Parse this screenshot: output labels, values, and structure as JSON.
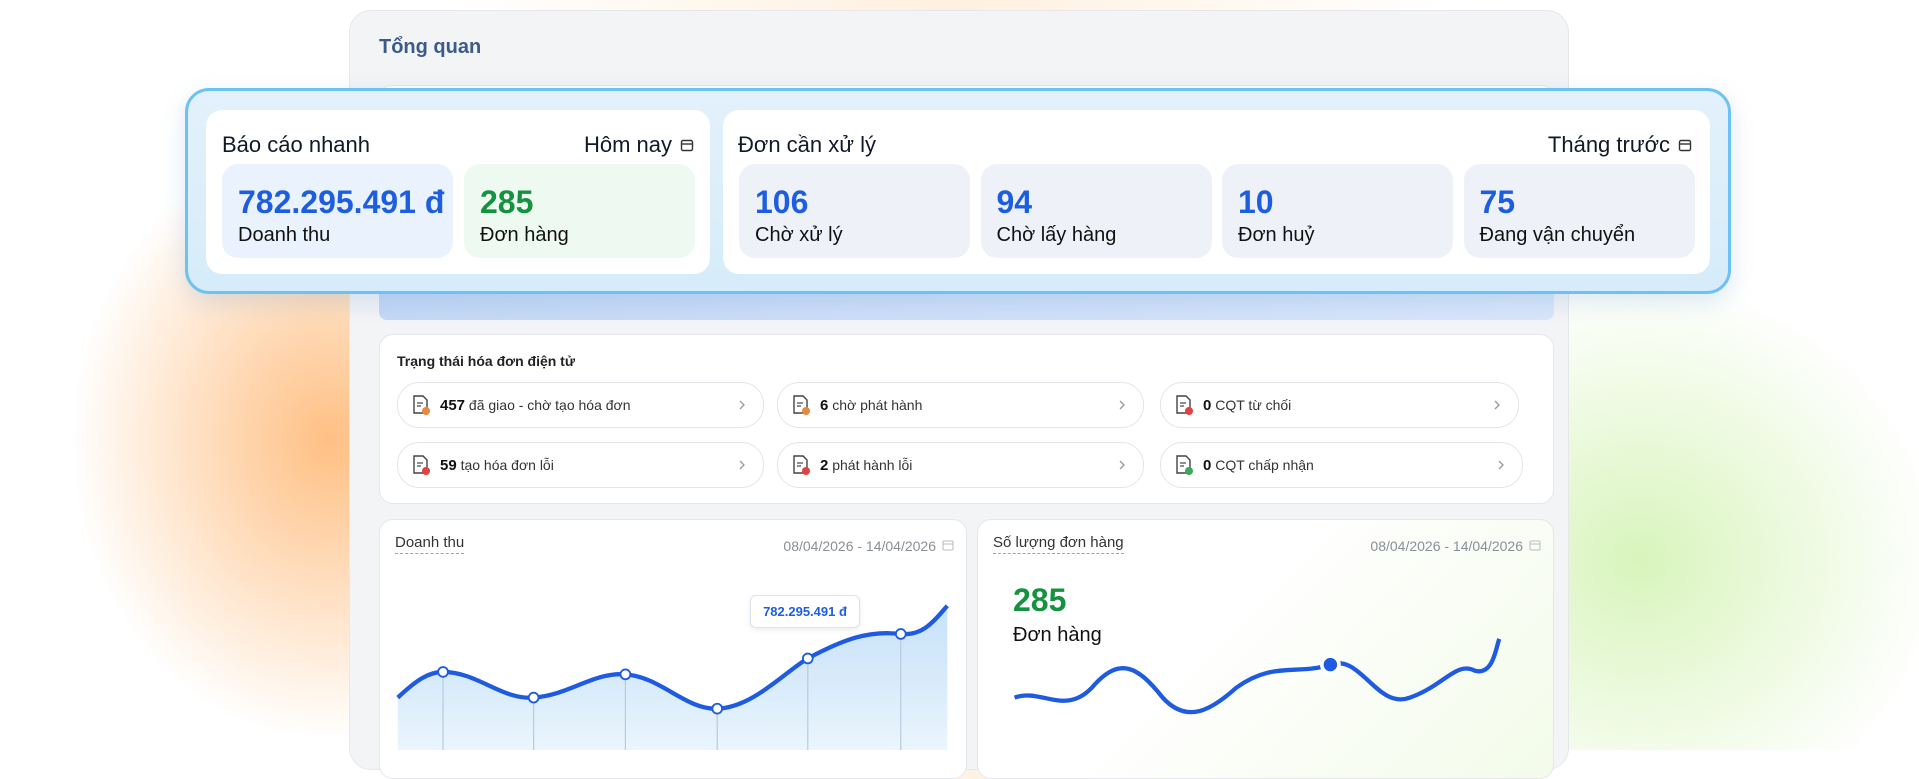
{
  "header": {
    "title": "Tổng quan"
  },
  "quick_report": {
    "title": "Báo cáo nhanh",
    "period": "Hôm nay",
    "stats": [
      {
        "value": "782.295.491 đ",
        "label": "Doanh thu"
      },
      {
        "value": 285,
        "label": "Đơn hàng"
      }
    ]
  },
  "pending_orders": {
    "title": "Đơn cần xử lý",
    "period": "Tháng trước",
    "stats": [
      {
        "value": 106,
        "label": "Chờ xử lý"
      },
      {
        "value": 94,
        "label": "Chờ lấy hàng"
      },
      {
        "value": 10,
        "label": "Đơn huỷ"
      },
      {
        "value": 75,
        "label": "Đang vận chuyển"
      }
    ]
  },
  "invoice_status": {
    "title": "Trạng thái hóa đơn điện tử",
    "items": [
      {
        "count": 457,
        "label": "đã giao - chờ tạo hóa đơn"
      },
      {
        "count": 6,
        "label": "chờ phát hành"
      },
      {
        "count": 0,
        "label": "CQT từ chối"
      },
      {
        "count": 59,
        "label": "tạo hóa đơn lỗi"
      },
      {
        "count": 2,
        "label": "phát hành lỗi"
      },
      {
        "count": 0,
        "label": "CQT chấp nhận"
      }
    ]
  },
  "revenue_chart": {
    "title": "Doanh thu",
    "range": "08/04/2026 - 14/04/2026",
    "tooltip": "782.295.491 đ"
  },
  "orders_chart": {
    "title": "Số lượng đơn hàng",
    "range": "08/04/2026 - 14/04/2026",
    "value": 285,
    "label": "Đơn hàng"
  }
}
